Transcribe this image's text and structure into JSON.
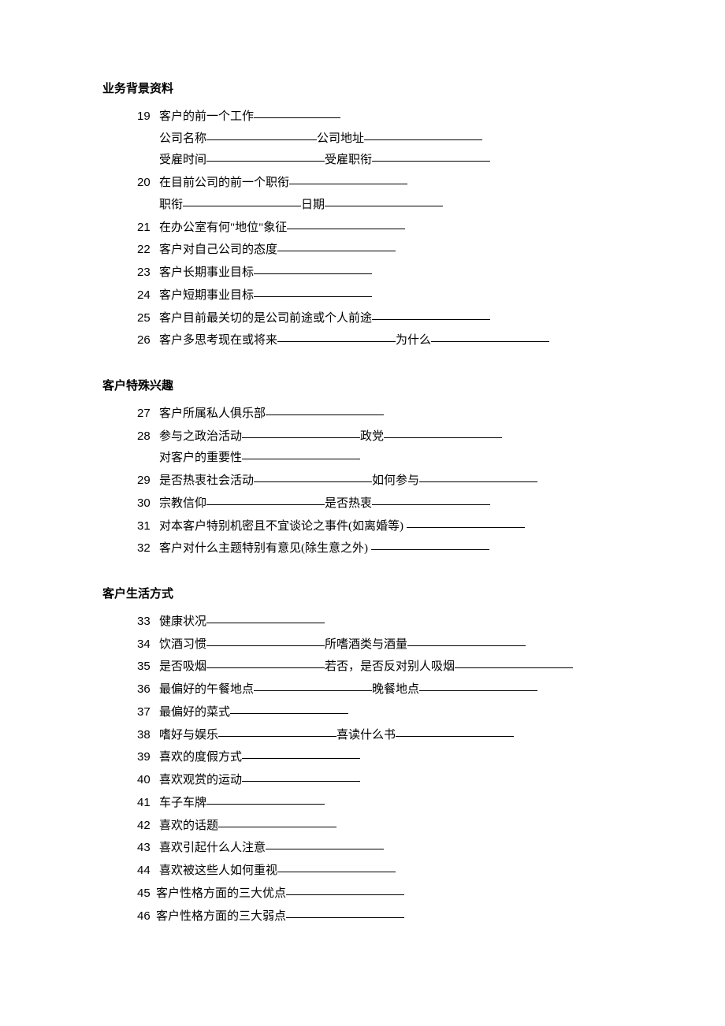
{
  "colors": {
    "background": "#ffffff",
    "text": "#000000",
    "underline": "#000000"
  },
  "typography": {
    "body_font": "SimSun",
    "number_font": "Arial",
    "font_size_pt": 11,
    "heading_weight": "bold",
    "line_height": 1.85
  },
  "sections": [
    {
      "heading": "业务背景资料",
      "items": [
        {
          "num": "19",
          "parts": [
            {
              "label": "客户的前一个工作",
              "blank": "short"
            }
          ],
          "sub": [
            [
              {
                "label": "公司名称",
                "blank": "med"
              },
              {
                "label": "公司地址",
                "blank": "long"
              }
            ],
            [
              {
                "label": "受雇时间",
                "blank": "long"
              },
              {
                "label": "受雇职衔",
                "blank": "long"
              }
            ]
          ]
        },
        {
          "num": "20",
          "parts": [
            {
              "label": "在目前公司的前一个职衔",
              "blank": "long"
            }
          ],
          "sub": [
            [
              {
                "label": "职衔",
                "blank": "long"
              },
              {
                "label": "日期",
                "blank": "long"
              }
            ]
          ]
        },
        {
          "num": "21",
          "parts": [
            {
              "label": "在办公室有何\"地位\"象征",
              "blank": "long"
            }
          ]
        },
        {
          "num": "22",
          "parts": [
            {
              "label": "客户对自己公司的态度",
              "blank": "long"
            }
          ]
        },
        {
          "num": "23",
          "parts": [
            {
              "label": "客户长期事业目标",
              "blank": "long"
            }
          ]
        },
        {
          "num": "24",
          "parts": [
            {
              "label": "客户短期事业目标",
              "blank": "long"
            }
          ]
        },
        {
          "num": "25",
          "parts": [
            {
              "label": "客户目前最关切的是公司前途或个人前途",
              "blank": "long"
            }
          ]
        },
        {
          "num": "26",
          "parts": [
            {
              "label": "客户多思考现在或将来",
              "blank": "long"
            },
            {
              "label": "为什么",
              "blank": "long"
            }
          ]
        }
      ]
    },
    {
      "heading": "客户特殊兴趣",
      "items": [
        {
          "num": "27",
          "parts": [
            {
              "label": "客户所属私人俱乐部",
              "blank": "long"
            }
          ]
        },
        {
          "num": "28",
          "parts": [
            {
              "label": "参与之政治活动",
              "blank": "long"
            },
            {
              "label": "政党",
              "blank": "long"
            }
          ],
          "sub": [
            [
              {
                "label": "对客户的重要性",
                "blank": "long"
              }
            ]
          ]
        },
        {
          "num": "29",
          "parts": [
            {
              "label": "是否热衷社会活动",
              "blank": "long"
            },
            {
              "label": "如何参与",
              "blank": "long"
            }
          ]
        },
        {
          "num": "30",
          "parts": [
            {
              "label": "宗教信仰",
              "blank": "long"
            },
            {
              "label": "是否热衷",
              "blank": "long"
            }
          ]
        },
        {
          "num": "31",
          "parts": [
            {
              "label": "对本客户特别机密且不宜谈论之事件(如离婚等) ",
              "blank": "long"
            }
          ]
        },
        {
          "num": "32",
          "parts": [
            {
              "label": "客户对什么主题特别有意见(除生意之外) ",
              "blank": "long"
            }
          ]
        }
      ]
    },
    {
      "heading": "客户生活方式",
      "items": [
        {
          "num": "33",
          "parts": [
            {
              "label": "健康状况",
              "blank": "long"
            }
          ]
        },
        {
          "num": "34",
          "parts": [
            {
              "label": "饮酒习惯",
              "blank": "long"
            },
            {
              "label": "所嗜酒类与酒量",
              "blank": "long"
            }
          ]
        },
        {
          "num": "35",
          "parts": [
            {
              "label": "是否吸烟",
              "blank": "long"
            },
            {
              "label": "若否，是否反对别人吸烟",
              "blank": "long"
            }
          ]
        },
        {
          "num": "36",
          "parts": [
            {
              "label": "最偏好的午餐地点",
              "blank": "long"
            },
            {
              "label": "晚餐地点",
              "blank": "long"
            }
          ]
        },
        {
          "num": "37",
          "parts": [
            {
              "label": "最偏好的菜式",
              "blank": "long"
            }
          ]
        },
        {
          "num": "38",
          "parts": [
            {
              "label": "嗜好与娱乐",
              "blank": "long"
            },
            {
              "label": "喜读什么书",
              "blank": "long"
            }
          ]
        },
        {
          "num": "39",
          "parts": [
            {
              "label": "喜欢的度假方式",
              "blank": "long"
            }
          ]
        },
        {
          "num": "40",
          "parts": [
            {
              "label": "喜欢观赏的运动",
              "blank": "long"
            }
          ]
        },
        {
          "num": "41",
          "parts": [
            {
              "label": "车子车牌",
              "blank": "long"
            }
          ]
        },
        {
          "num": "42",
          "parts": [
            {
              "label": "喜欢的话题",
              "blank": "long"
            }
          ]
        },
        {
          "num": "43",
          "parts": [
            {
              "label": "喜欢引起什么人注意",
              "blank": "long"
            }
          ]
        },
        {
          "num": "44",
          "parts": [
            {
              "label": "喜欢被这些人如何重视",
              "blank": "long"
            }
          ]
        },
        {
          "num": "45",
          "parts": [
            {
              "label": "客户性格方面的三大优点",
              "blank": "long"
            }
          ],
          "tight": true
        },
        {
          "num": "46",
          "parts": [
            {
              "label": "客户性格方面的三大弱点",
              "blank": "long"
            }
          ],
          "tight": true
        }
      ]
    }
  ]
}
